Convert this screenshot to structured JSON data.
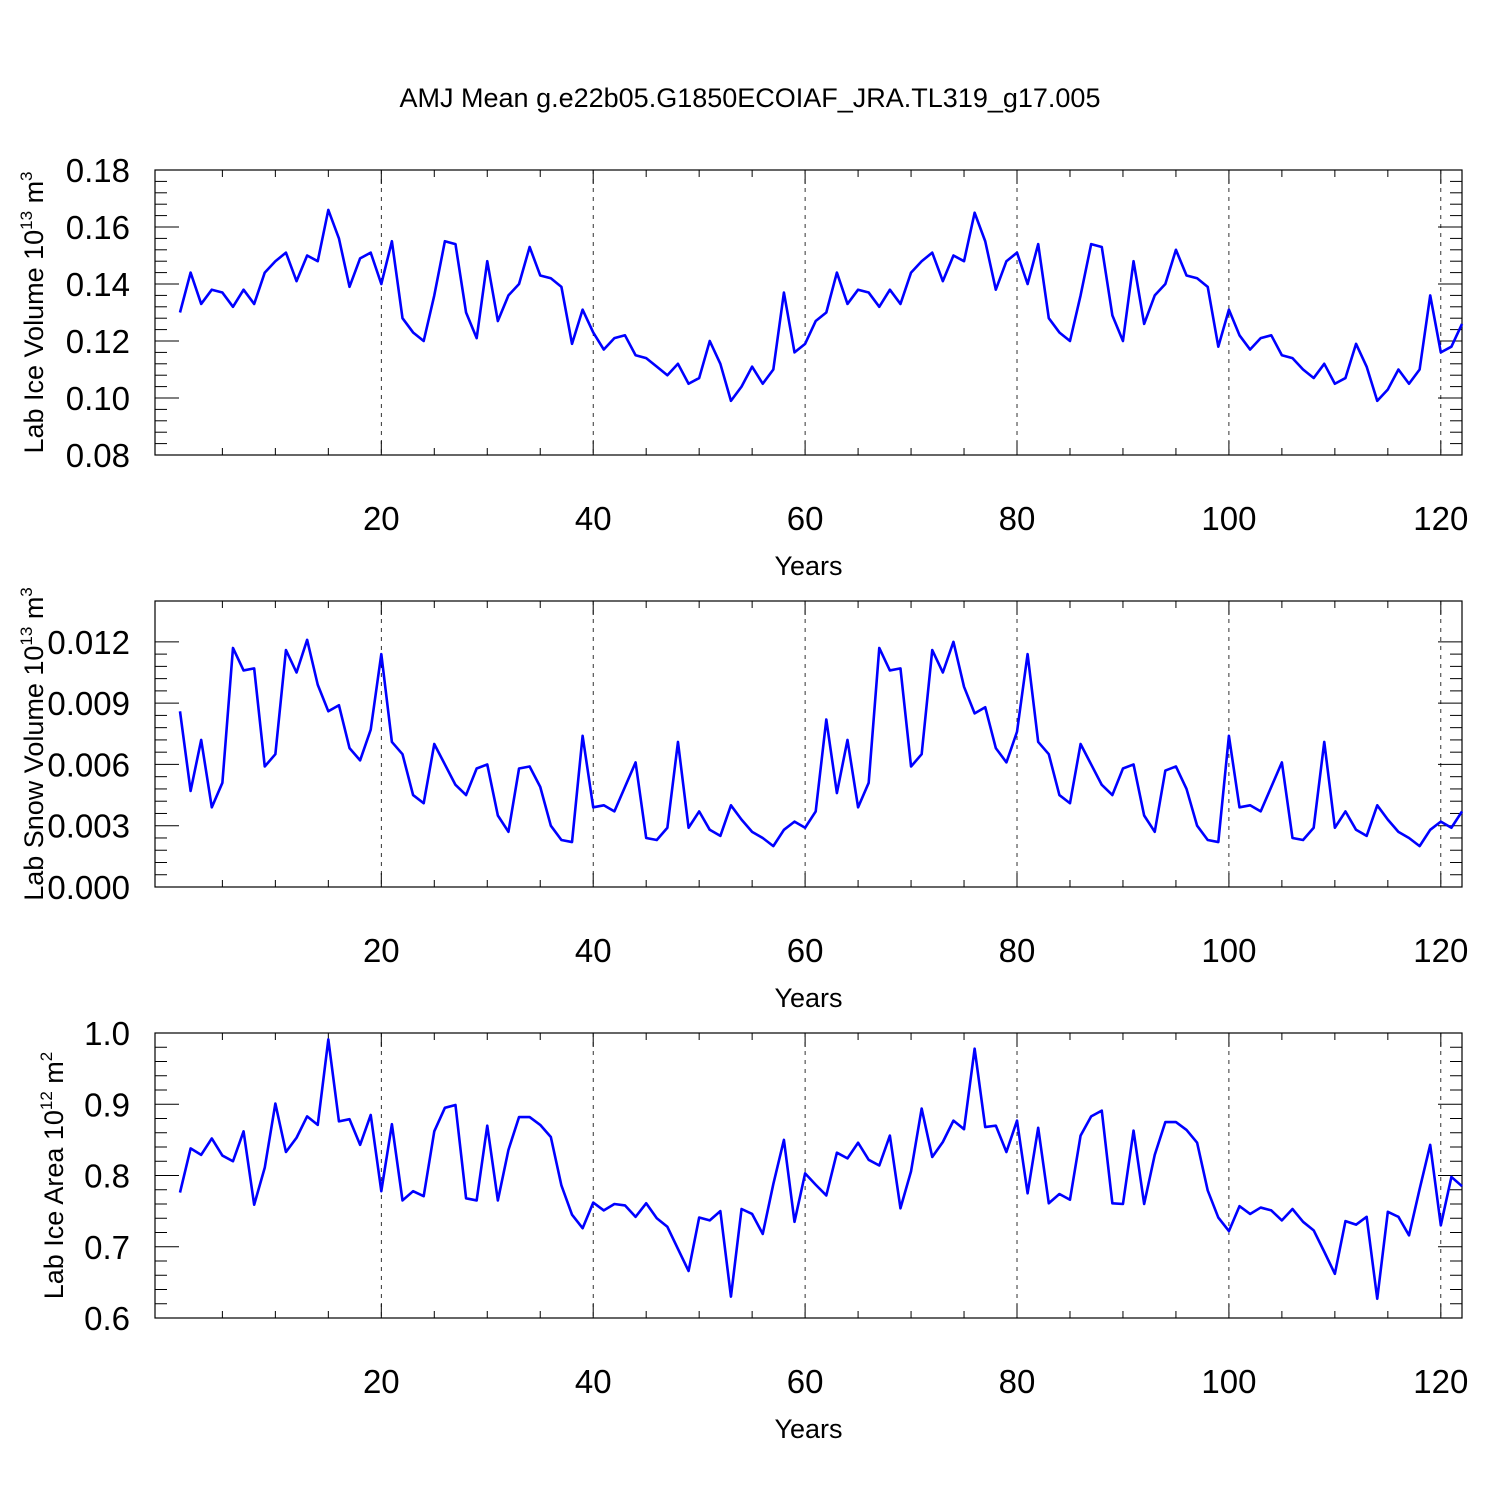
{
  "title": "AMJ Mean g.e22b05.G1850ECOIAF_JRA.TL319_g17.005",
  "line_color": "#0000ff",
  "chart_data": [
    {
      "type": "line",
      "xlabel": "Years",
      "ylabel": {
        "text": "Lab Ice Volume 10",
        "exp": "13",
        "unit": " m",
        "unit_exp": "3"
      },
      "xlim": [
        1,
        122
      ],
      "ylim": [
        0.08,
        0.18
      ],
      "x_ticks": [
        20,
        40,
        60,
        80,
        100,
        120
      ],
      "x_tick_labels": [
        "20",
        "40",
        "60",
        "80",
        "100",
        "120"
      ],
      "y_ticks": [
        0.08,
        0.1,
        0.12,
        0.14,
        0.16,
        0.18
      ],
      "y_tick_labels": [
        "0.08",
        "0.10",
        "0.12",
        "0.14",
        "0.16",
        "0.18"
      ],
      "x_grid": "dashed vertical lines at major x ticks",
      "series": [
        {
          "x_start": 1,
          "values": [
            0.13,
            0.144,
            0.133,
            0.138,
            0.137,
            0.132,
            0.138,
            0.133,
            0.144,
            0.148,
            0.151,
            0.141,
            0.15,
            0.148,
            0.166,
            0.156,
            0.139,
            0.149,
            0.151,
            0.14,
            0.155,
            0.128,
            0.123,
            0.12,
            0.136,
            0.155,
            0.154,
            0.13,
            0.121,
            0.148,
            0.127,
            0.136,
            0.14,
            0.153,
            0.143,
            0.142,
            0.139,
            0.119,
            0.131,
            0.123,
            0.117,
            0.121,
            0.122,
            0.115,
            0.114,
            0.111,
            0.108,
            0.112,
            0.105,
            0.107,
            0.12,
            0.112,
            0.099,
            0.104,
            0.111,
            0.105,
            0.11,
            0.137,
            0.116,
            0.119,
            0.127,
            0.13,
            0.144,
            0.133,
            0.138,
            0.137,
            0.132,
            0.138,
            0.133,
            0.144,
            0.148,
            0.151,
            0.141,
            0.15,
            0.148,
            0.165,
            0.155,
            0.138,
            0.148,
            0.151,
            0.14,
            0.154,
            0.128,
            0.123,
            0.12,
            0.136,
            0.154,
            0.153,
            0.129,
            0.12,
            0.148,
            0.126,
            0.136,
            0.14,
            0.152,
            0.143,
            0.142,
            0.139,
            0.118,
            0.131,
            0.122,
            0.117,
            0.121,
            0.122,
            0.115,
            0.114,
            0.11,
            0.107,
            0.112,
            0.105,
            0.107,
            0.119,
            0.111,
            0.099,
            0.103,
            0.11,
            0.105,
            0.11,
            0.136,
            0.116,
            0.118,
            0.126
          ]
        }
      ]
    },
    {
      "type": "line",
      "xlabel": "Years",
      "ylabel": {
        "text": "Lab Snow Volume 10",
        "exp": "13",
        "unit": " m",
        "unit_exp": "3"
      },
      "xlim": [
        1,
        122
      ],
      "ylim": [
        0.0,
        0.014
      ],
      "x_ticks": [
        20,
        40,
        60,
        80,
        100,
        120
      ],
      "x_tick_labels": [
        "20",
        "40",
        "60",
        "80",
        "100",
        "120"
      ],
      "y_ticks": [
        0.0,
        0.003,
        0.006,
        0.009,
        0.012
      ],
      "y_tick_labels": [
        "0.000",
        "0.003",
        "0.006",
        "0.009",
        "0.012"
      ],
      "x_grid": "dashed vertical lines at major x ticks",
      "series": [
        {
          "x_start": 1,
          "values": [
            0.0086,
            0.0047,
            0.0072,
            0.0039,
            0.0051,
            0.0117,
            0.0106,
            0.0107,
            0.0059,
            0.0065,
            0.0116,
            0.0105,
            0.0121,
            0.0099,
            0.0086,
            0.0089,
            0.0068,
            0.0062,
            0.0077,
            0.0114,
            0.0071,
            0.0065,
            0.0045,
            0.0041,
            0.007,
            0.006,
            0.005,
            0.0045,
            0.0058,
            0.006,
            0.0035,
            0.0027,
            0.0058,
            0.0059,
            0.0049,
            0.003,
            0.0023,
            0.0022,
            0.0074,
            0.0039,
            0.004,
            0.0037,
            0.0049,
            0.0061,
            0.0024,
            0.0023,
            0.0029,
            0.0071,
            0.0029,
            0.0037,
            0.0028,
            0.0025,
            0.004,
            0.0033,
            0.0027,
            0.0024,
            0.002,
            0.0028,
            0.0032,
            0.0029,
            0.0037,
            0.0082,
            0.0046,
            0.0072,
            0.0039,
            0.0051,
            0.0117,
            0.0106,
            0.0107,
            0.0059,
            0.0065,
            0.0116,
            0.0105,
            0.012,
            0.0098,
            0.0085,
            0.0088,
            0.0068,
            0.0061,
            0.0076,
            0.0114,
            0.0071,
            0.0065,
            0.0045,
            0.0041,
            0.007,
            0.006,
            0.005,
            0.0045,
            0.0058,
            0.006,
            0.0035,
            0.0027,
            0.0057,
            0.0059,
            0.0048,
            0.003,
            0.0023,
            0.0022,
            0.0074,
            0.0039,
            0.004,
            0.0037,
            0.0049,
            0.0061,
            0.0024,
            0.0023,
            0.0029,
            0.0071,
            0.0029,
            0.0037,
            0.0028,
            0.0025,
            0.004,
            0.0033,
            0.0027,
            0.0024,
            0.002,
            0.0028,
            0.0032,
            0.0029,
            0.0037
          ]
        }
      ]
    },
    {
      "type": "line",
      "xlabel": "Years",
      "ylabel": {
        "text": "Lab Ice Area 10",
        "exp": "12",
        "unit": " m",
        "unit_exp": "2"
      },
      "xlim": [
        1,
        122
      ],
      "ylim": [
        0.6,
        1.0
      ],
      "x_ticks": [
        20,
        40,
        60,
        80,
        100,
        120
      ],
      "x_tick_labels": [
        "20",
        "40",
        "60",
        "80",
        "100",
        "120"
      ],
      "y_ticks": [
        0.6,
        0.7,
        0.8,
        0.9,
        1.0
      ],
      "y_tick_labels": [
        "0.6",
        "0.7",
        "0.8",
        "0.9",
        "1.0"
      ],
      "x_grid": "dashed vertical lines at major x ticks",
      "series": [
        {
          "x_start": 1,
          "values": [
            0.776,
            0.838,
            0.829,
            0.852,
            0.828,
            0.82,
            0.862,
            0.759,
            0.811,
            0.901,
            0.833,
            0.853,
            0.883,
            0.871,
            0.991,
            0.876,
            0.879,
            0.843,
            0.885,
            0.778,
            0.872,
            0.765,
            0.778,
            0.771,
            0.862,
            0.895,
            0.899,
            0.768,
            0.765,
            0.87,
            0.765,
            0.836,
            0.882,
            0.882,
            0.871,
            0.854,
            0.786,
            0.745,
            0.726,
            0.762,
            0.751,
            0.76,
            0.758,
            0.742,
            0.761,
            0.74,
            0.728,
            0.697,
            0.666,
            0.741,
            0.737,
            0.75,
            0.63,
            0.753,
            0.746,
            0.718,
            0.788,
            0.85,
            0.735,
            0.803,
            0.787,
            0.772,
            0.832,
            0.824,
            0.846,
            0.822,
            0.814,
            0.856,
            0.754,
            0.806,
            0.894,
            0.826,
            0.847,
            0.877,
            0.865,
            0.978,
            0.868,
            0.87,
            0.833,
            0.877,
            0.775,
            0.867,
            0.761,
            0.774,
            0.766,
            0.856,
            0.883,
            0.891,
            0.761,
            0.76,
            0.863,
            0.76,
            0.829,
            0.875,
            0.875,
            0.864,
            0.846,
            0.779,
            0.741,
            0.722,
            0.757,
            0.746,
            0.755,
            0.751,
            0.737,
            0.753,
            0.735,
            0.723,
            0.693,
            0.662,
            0.736,
            0.731,
            0.742,
            0.627,
            0.749,
            0.742,
            0.716,
            0.781,
            0.843,
            0.73,
            0.798,
            0.785
          ]
        }
      ]
    }
  ]
}
